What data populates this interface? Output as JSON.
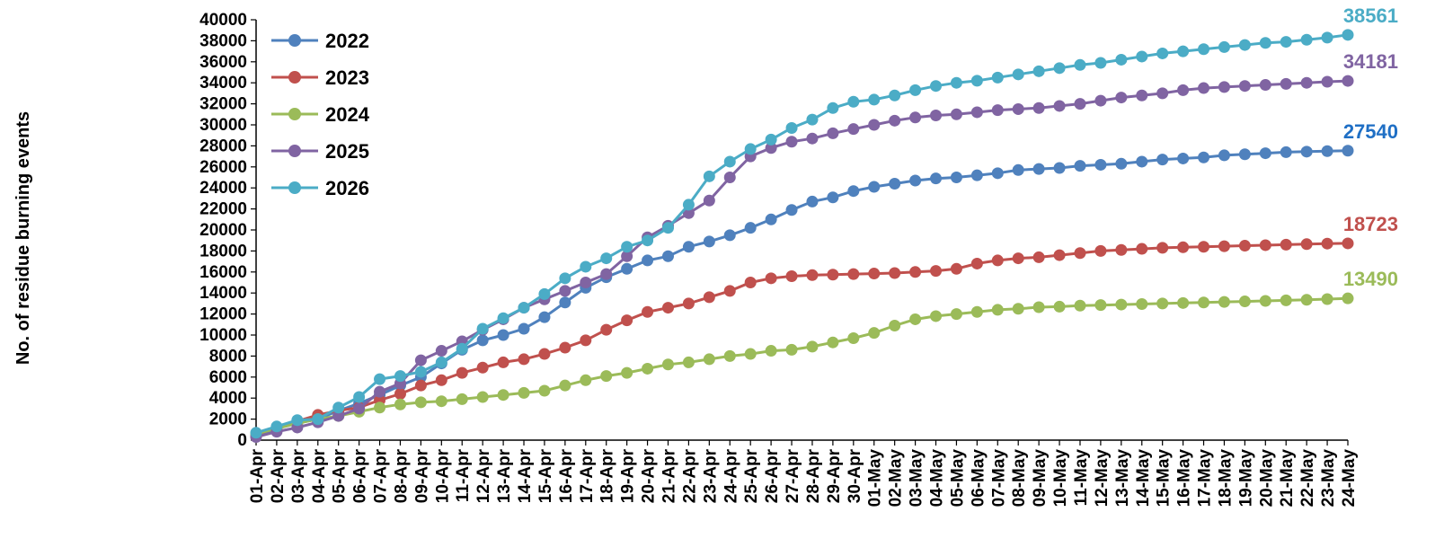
{
  "chart_data": {
    "type": "line",
    "title": "",
    "xlabel": "",
    "ylabel": "No. of residue burning events",
    "ylim": [
      0,
      40000
    ],
    "ytick_step": 2000,
    "grid": false,
    "legend_position": "top-left",
    "categories": [
      "01-Apr",
      "02-Apr",
      "03-Apr",
      "04-Apr",
      "05-Apr",
      "06-Apr",
      "07-Apr",
      "08-Apr",
      "09-Apr",
      "10-Apr",
      "11-Apr",
      "12-Apr",
      "13-Apr",
      "14-Apr",
      "15-Apr",
      "16-Apr",
      "17-Apr",
      "18-Apr",
      "19-Apr",
      "20-Apr",
      "21-Apr",
      "22-Apr",
      "23-Apr",
      "24-Apr",
      "25-Apr",
      "26-Apr",
      "27-Apr",
      "28-Apr",
      "29-Apr",
      "30-Apr",
      "01-May",
      "02-May",
      "03-May",
      "04-May",
      "05-May",
      "06-May",
      "07-May",
      "08-May",
      "09-May",
      "10-May",
      "11-May",
      "12-May",
      "13-May",
      "14-May",
      "15-May",
      "16-May",
      "17-May",
      "18-May",
      "19-May",
      "20-May",
      "21-May",
      "22-May",
      "23-May",
      "24-May"
    ],
    "series": [
      {
        "name": "2022",
        "color": "#4F81BD",
        "label_color": "#1F6FC5",
        "end_label": "27540",
        "values": [
          400,
          1100,
          1600,
          2000,
          2800,
          3500,
          4300,
          5200,
          6000,
          7300,
          8600,
          9500,
          10000,
          10600,
          11700,
          13100,
          14500,
          15500,
          16300,
          17100,
          17500,
          18400,
          18900,
          19500,
          20200,
          21000,
          21900,
          22700,
          23100,
          23700,
          24100,
          24400,
          24700,
          24900,
          25000,
          25200,
          25400,
          25700,
          25800,
          25900,
          26100,
          26200,
          26300,
          26500,
          26700,
          26800,
          26900,
          27100,
          27200,
          27300,
          27400,
          27450,
          27500,
          27540
        ]
      },
      {
        "name": "2023",
        "color": "#C0504D",
        "label_color": "#C0504D",
        "end_label": "18723",
        "values": [
          500,
          1200,
          1800,
          2400,
          2800,
          3100,
          3800,
          4400,
          5200,
          5700,
          6400,
          6900,
          7400,
          7700,
          8200,
          8800,
          9500,
          10500,
          11400,
          12200,
          12600,
          13000,
          13600,
          14200,
          15000,
          15400,
          15600,
          15700,
          15750,
          15800,
          15850,
          15900,
          16000,
          16100,
          16300,
          16800,
          17100,
          17300,
          17400,
          17600,
          17800,
          18000,
          18100,
          18200,
          18300,
          18350,
          18400,
          18450,
          18500,
          18550,
          18600,
          18650,
          18700,
          18723
        ]
      },
      {
        "name": "2024",
        "color": "#9BBB59",
        "label_color": "#9BBB59",
        "end_label": "13490",
        "values": [
          600,
          1100,
          1600,
          2000,
          2300,
          2700,
          3100,
          3400,
          3600,
          3700,
          3900,
          4100,
          4300,
          4500,
          4700,
          5200,
          5700,
          6100,
          6400,
          6800,
          7200,
          7400,
          7700,
          8000,
          8200,
          8500,
          8600,
          8900,
          9300,
          9700,
          10200,
          10900,
          11500,
          11800,
          12000,
          12200,
          12400,
          12500,
          12650,
          12700,
          12800,
          12850,
          12900,
          12950,
          13000,
          13050,
          13100,
          13150,
          13200,
          13250,
          13300,
          13350,
          13420,
          13490
        ]
      },
      {
        "name": "2025",
        "color": "#8064A2",
        "label_color": "#8064A2",
        "end_label": "34181",
        "values": [
          300,
          800,
          1200,
          1700,
          2300,
          3000,
          4600,
          5400,
          7600,
          8500,
          9400,
          10500,
          11500,
          12600,
          13400,
          14200,
          15000,
          15800,
          17500,
          19300,
          20400,
          21600,
          22800,
          25000,
          27000,
          27800,
          28400,
          28700,
          29200,
          29600,
          30000,
          30400,
          30700,
          30900,
          31000,
          31200,
          31400,
          31500,
          31600,
          31800,
          32000,
          32300,
          32600,
          32800,
          33000,
          33300,
          33500,
          33600,
          33700,
          33800,
          33900,
          34000,
          34100,
          34181
        ]
      },
      {
        "name": "2026",
        "color": "#4BACC6",
        "label_color": "#4BACC6",
        "end_label": "38561",
        "values": [
          700,
          1300,
          1900,
          2000,
          3100,
          4100,
          5800,
          6100,
          6500,
          7400,
          8700,
          10600,
          11600,
          12600,
          13900,
          15400,
          16500,
          17300,
          18400,
          19000,
          20200,
          22400,
          25100,
          26500,
          27700,
          28600,
          29700,
          30500,
          31600,
          32200,
          32400,
          32800,
          33300,
          33700,
          34000,
          34200,
          34500,
          34800,
          35100,
          35400,
          35700,
          35900,
          36200,
          36500,
          36800,
          37000,
          37200,
          37400,
          37600,
          37800,
          37900,
          38100,
          38300,
          38561
        ]
      }
    ]
  }
}
